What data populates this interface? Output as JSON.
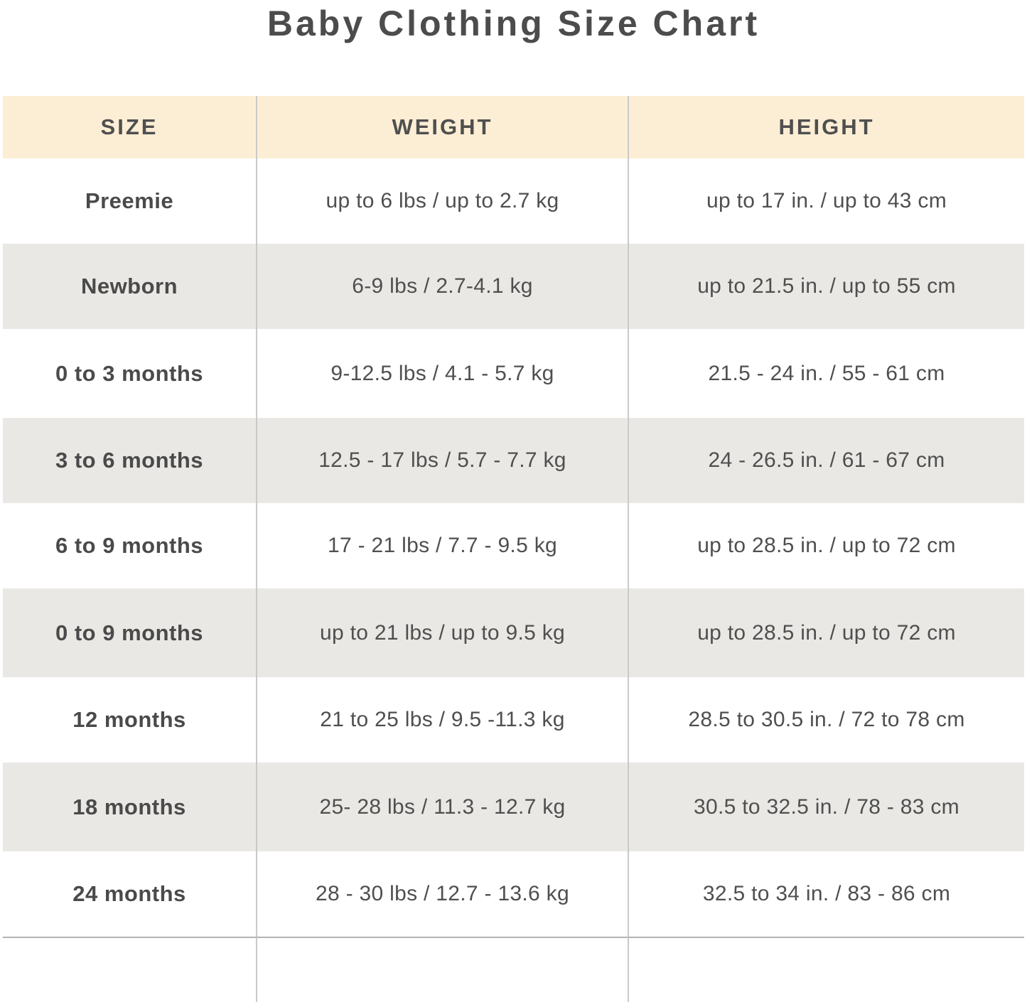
{
  "title": "Baby Clothing Size Chart",
  "chart_data": {
    "type": "table",
    "title": "Baby Clothing Size Chart",
    "columns": [
      "SIZE",
      "WEIGHT",
      "HEIGHT"
    ],
    "rows": [
      {
        "size": "Preemie",
        "weight": "up to 6 lbs / up to 2.7 kg",
        "height": "up to 17 in. / up to 43 cm"
      },
      {
        "size": "Newborn",
        "weight": "6-9 lbs / 2.7-4.1 kg",
        "height": "up to 21.5 in. / up to 55 cm"
      },
      {
        "size": "0 to 3 months",
        "weight": "9-12.5 lbs / 4.1 - 5.7 kg",
        "height": "21.5 - 24 in. / 55 - 61 cm"
      },
      {
        "size": "3 to 6 months",
        "weight": "12.5 - 17 lbs / 5.7 - 7.7 kg",
        "height": "24 - 26.5 in. / 61 - 67 cm"
      },
      {
        "size": "6 to 9 months",
        "weight": "17 - 21 lbs / 7.7 - 9.5 kg",
        "height": "up to 28.5 in. / up to 72 cm"
      },
      {
        "size": "0 to 9 months",
        "weight": "up to 21 lbs / up to 9.5 kg",
        "height": "up to 28.5 in. / up to 72 cm"
      },
      {
        "size": "12 months",
        "weight": "21 to 25 lbs / 9.5 -11.3 kg",
        "height": "28.5 to 30.5 in. / 72 to 78 cm"
      },
      {
        "size": "18 months",
        "weight": "25- 28 lbs / 11.3 - 12.7 kg",
        "height": "30.5 to 32.5 in. / 78 - 83 cm"
      },
      {
        "size": "24 months",
        "weight": "28 - 30 lbs / 12.7 - 13.6 kg",
        "height": "32.5 to 34 in. / 83 - 86 cm"
      }
    ],
    "layout": {
      "legend": "none",
      "grid": "column-separators-and-alternating-row-shading"
    },
    "colors": {
      "header_background": "#fceed5",
      "row_alt_background": "#e9e8e5",
      "row_background": "#ffffff",
      "text": "#4f4f4f",
      "separator": "#c9c9c9"
    }
  }
}
